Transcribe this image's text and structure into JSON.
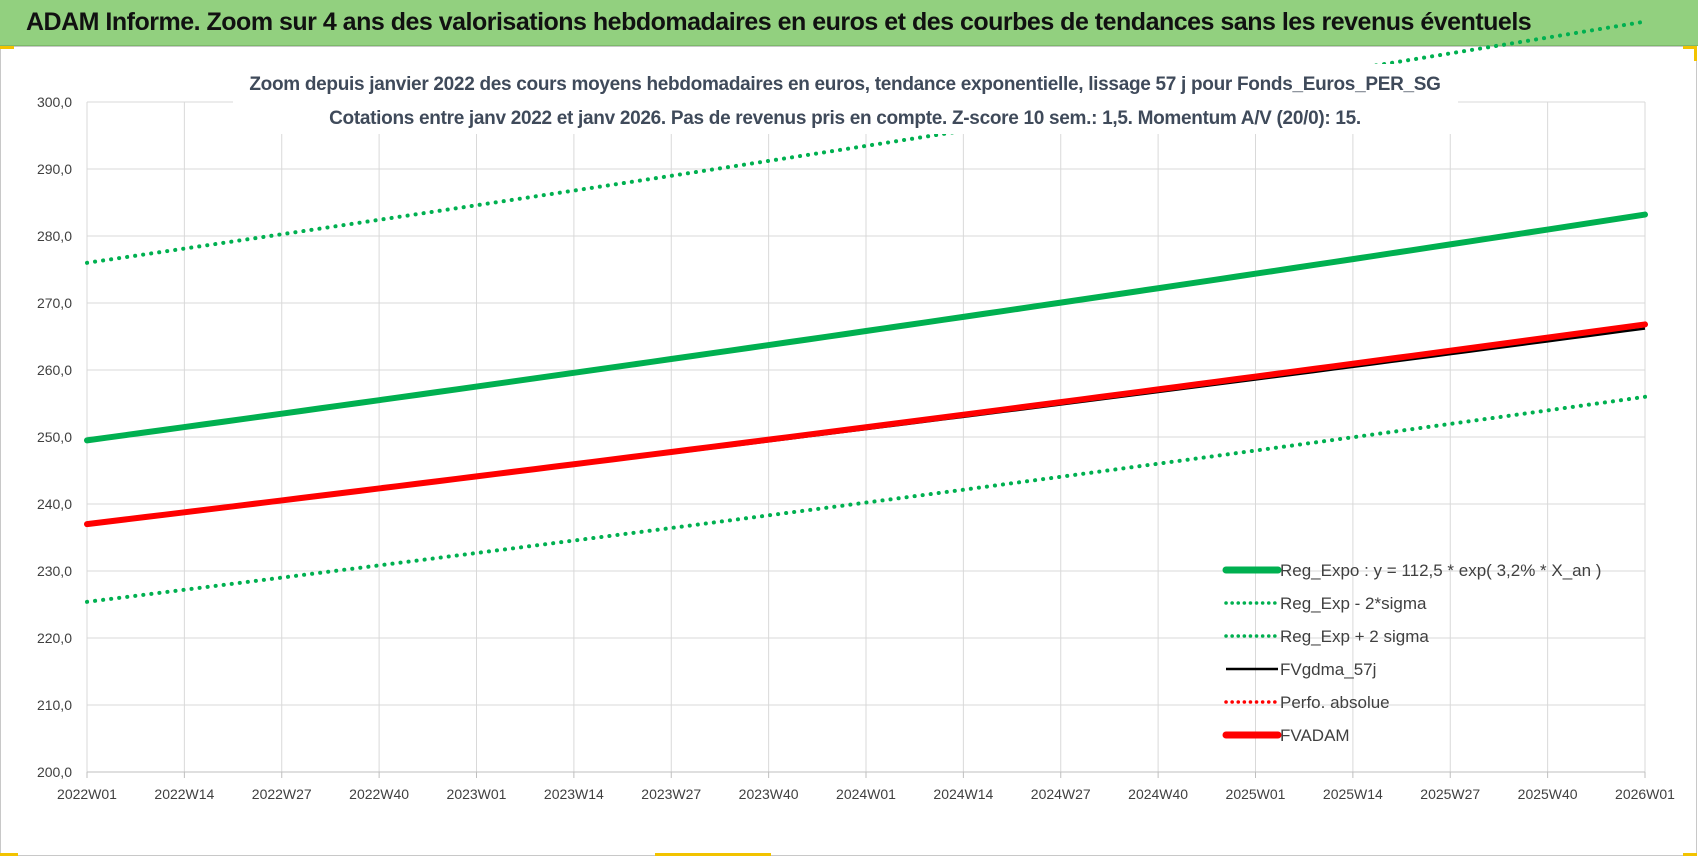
{
  "banner": {
    "title": "ADAM Informe. Zoom sur 4 ans des valorisations hebdomadaires en euros et des courbes de tendances sans les revenus éventuels"
  },
  "colors": {
    "banner_bg": "#92d07f",
    "green_trend": "#00b050",
    "red_fvadam": "#ff0000",
    "black_fvgdma": "#000000",
    "accent_yellow": "#f2c300"
  },
  "chart_data": {
    "type": "line",
    "title": "Zoom depuis janvier 2022 des cours moyens hebdomadaires en euros, tendance exponentielle, lissage 57 j pour Fonds_Euros_PER_SG",
    "subtitle": "Cotations entre janv 2022 et janv 2026. Pas de revenus pris en compte. Z-score 10 sem.: 1,5. Momentum A/V (20/0): 15.",
    "xlabel": "",
    "ylabel": "",
    "ylim": [
      200,
      300
    ],
    "yticks": [
      "200,0",
      "210,0",
      "220,0",
      "230,0",
      "240,0",
      "250,0",
      "260,0",
      "270,0",
      "280,0",
      "290,0",
      "300,0"
    ],
    "x_tick_labels": [
      "2022W01",
      "2022W14",
      "2022W27",
      "2022W40",
      "2023W01",
      "2023W14",
      "2023W27",
      "2023W40",
      "2024W01",
      "2024W14",
      "2024W27",
      "2024W40",
      "2025W01",
      "2025W14",
      "2025W27",
      "2025W40",
      "2026W01"
    ],
    "grid": true,
    "legend_position": "bottom-right",
    "series": [
      {
        "name": "Reg_Expo : y = 112,5 * exp( 3,2% *  X_an )",
        "color": "#00b050",
        "style": "solid-thick",
        "start": 249.5,
        "end": 283.2
      },
      {
        "name": "Reg_Exp - 2*sigma",
        "color": "#00b050",
        "style": "dotted",
        "start": 225.4,
        "end": 256.0
      },
      {
        "name": "Reg_Exp + 2 sigma",
        "color": "#00b050",
        "style": "dotted",
        "start": 276.0,
        "end": 312.0
      },
      {
        "name": "FVgdma_57j",
        "color": "#000000",
        "style": "solid",
        "start": 237.0,
        "end": 266.2
      },
      {
        "name": "Perfo. absolue",
        "color": "#ff0000",
        "style": "dotted",
        "start": 237.0,
        "end": 266.8
      },
      {
        "name": "FVADAM",
        "color": "#ff0000",
        "style": "solid-thick",
        "start": 237.0,
        "end": 266.8
      }
    ]
  }
}
